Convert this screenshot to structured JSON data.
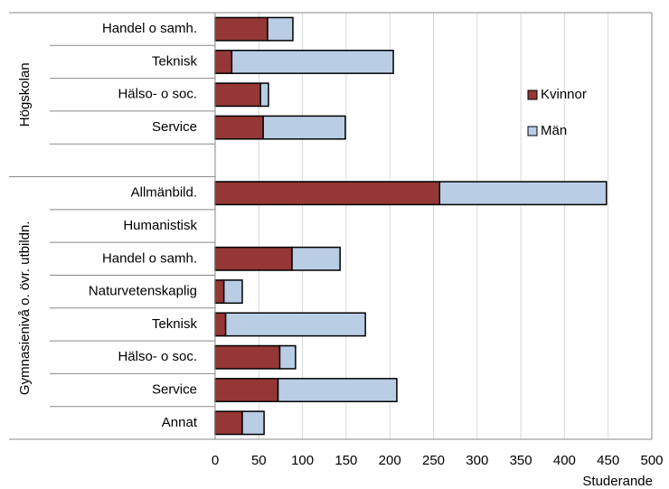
{
  "chart_data": {
    "type": "stacked_bar_horizontal",
    "groups": [
      {
        "name": "Högskolan",
        "categories": [
          "Handel o samh.",
          "Teknisk",
          "Hälso- o soc.",
          "Service",
          null
        ]
      },
      {
        "name": "Gymnasienivå o. övr. utbildn.",
        "categories": [
          "Allmänbild.",
          "Humanistisk",
          "Handel o samh.",
          "Naturvetenskaplig",
          "Teknisk",
          "Hälso- o soc.",
          "Service",
          "Annat"
        ]
      }
    ],
    "series": [
      {
        "name": "Kvinnor",
        "color": "#953735",
        "values": [
          60,
          19,
          52,
          55,
          null,
          257,
          0,
          88,
          10,
          12,
          74,
          72,
          31
        ]
      },
      {
        "name": "Män",
        "color": "#b9cde5",
        "values": [
          29,
          185,
          9,
          94,
          null,
          191,
          0,
          55,
          21,
          160,
          18,
          136,
          25
        ]
      }
    ],
    "xlabel": "Studerande",
    "xlim": [
      0,
      500
    ],
    "xticks": [
      0,
      50,
      100,
      150,
      200,
      250,
      300,
      350,
      400,
      450,
      500
    ],
    "grid": true,
    "legend": "right"
  }
}
